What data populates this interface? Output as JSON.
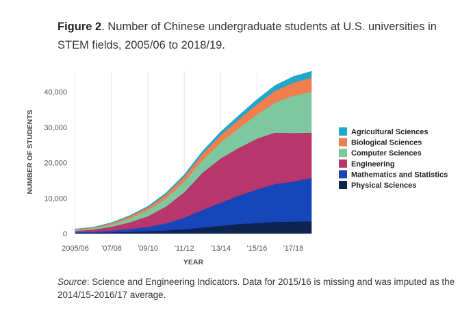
{
  "caption": {
    "label": "Figure 2",
    "text": ". Number of Chinese undergraduate students at U.S. universities in STEM fields, 2005/06 to 2018/19."
  },
  "source": {
    "label": "Source",
    "text": ": Science and Engineering Indicators. Data for 2015/16 is missing and was imputed as the 2014/15-2016/17 average."
  },
  "chart_data": {
    "type": "area",
    "stacked": true,
    "xlabel": "YEAR",
    "ylabel": "NUMBER OF STUDENTS",
    "ylim": [
      0,
      46000
    ],
    "x": [
      "2005/06",
      "2006/07",
      "2007/08",
      "2008/09",
      "2009/10",
      "2010/11",
      "2011/12",
      "2012/13",
      "2013/14",
      "2014/15",
      "2015/16",
      "2016/17",
      "2017/18",
      "2018/19"
    ],
    "x_tick_labels": [
      "2005/06",
      "'07/08",
      "'09/10",
      "'11/12",
      "'13/14",
      "'15/16",
      "'17/18"
    ],
    "x_tick_values": [
      "2005/06",
      "2007/08",
      "2009/10",
      "2011/12",
      "2013/14",
      "2015/16",
      "2017/18"
    ],
    "y_ticks": [
      0,
      10000,
      20000,
      30000,
      40000
    ],
    "y_tick_labels": [
      "0",
      "10,000",
      "20,000",
      "30,000",
      "40,000"
    ],
    "grid": "vertical",
    "legend_position": "right",
    "series": [
      {
        "name": "Physical Sciences",
        "color": "#0d2451",
        "values": [
          200,
          250,
          350,
          500,
          700,
          900,
          1200,
          1700,
          2200,
          2700,
          3000,
          3300,
          3400,
          3500
        ]
      },
      {
        "name": "Mathematics and Statistics",
        "color": "#1745ba",
        "values": [
          200,
          300,
          500,
          800,
          1200,
          2000,
          3300,
          5000,
          6500,
          8000,
          9500,
          10700,
          11300,
          12200
        ]
      },
      {
        "name": "Engineering",
        "color": "#b7366b",
        "values": [
          400,
          600,
          1100,
          1900,
          3000,
          4800,
          7200,
          10500,
          12500,
          13500,
          14300,
          14500,
          13700,
          12800
        ]
      },
      {
        "name": "Computer Sciences",
        "color": "#7ec8a1",
        "values": [
          200,
          300,
          600,
          1100,
          1700,
          2300,
          3000,
          3500,
          4500,
          5500,
          6800,
          8500,
          10500,
          11500
        ]
      },
      {
        "name": "Biological Sciences",
        "color": "#f17e4d",
        "values": [
          200,
          250,
          400,
          600,
          800,
          1100,
          1400,
          1800,
          2100,
          2500,
          2900,
          3300,
          3700,
          4000
        ]
      },
      {
        "name": "Agricultural Sciences",
        "color": "#20a7c9",
        "values": [
          100,
          100,
          150,
          200,
          300,
          400,
          500,
          700,
          900,
          1100,
          1300,
          1500,
          1700,
          1800
        ]
      }
    ]
  }
}
